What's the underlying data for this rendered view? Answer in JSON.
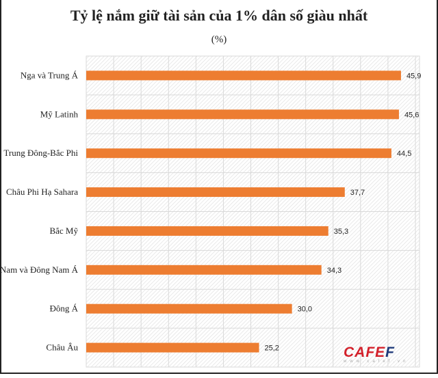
{
  "chart_data": {
    "type": "bar",
    "orientation": "horizontal",
    "title": "Tỷ lệ nắm giữ tài sản của 1% dân số giàu nhất",
    "subtitle": "(%)",
    "xlabel": "",
    "ylabel": "",
    "categories": [
      "Nga và Trung Á",
      "Mỹ Latinh",
      "Trung Đông-Bắc Phi",
      "Châu Phi Hạ Sahara",
      "Bắc Mỹ",
      "Nam và Đông Nam Á",
      "Đông Á",
      "Châu Âu"
    ],
    "values": [
      45.9,
      45.6,
      44.5,
      37.7,
      35.3,
      34.3,
      30.0,
      25.2
    ],
    "value_labels": [
      "45,9",
      "45,6",
      "44,5",
      "37,7",
      "35,3",
      "34,3",
      "30,0",
      "25,2"
    ],
    "xlim": [
      0,
      48.6
    ],
    "grid": true,
    "bar_color": "#ed7d31",
    "legend": "none"
  },
  "watermark": {
    "brand": "CAFEF",
    "url": "www.cafef.vn"
  }
}
